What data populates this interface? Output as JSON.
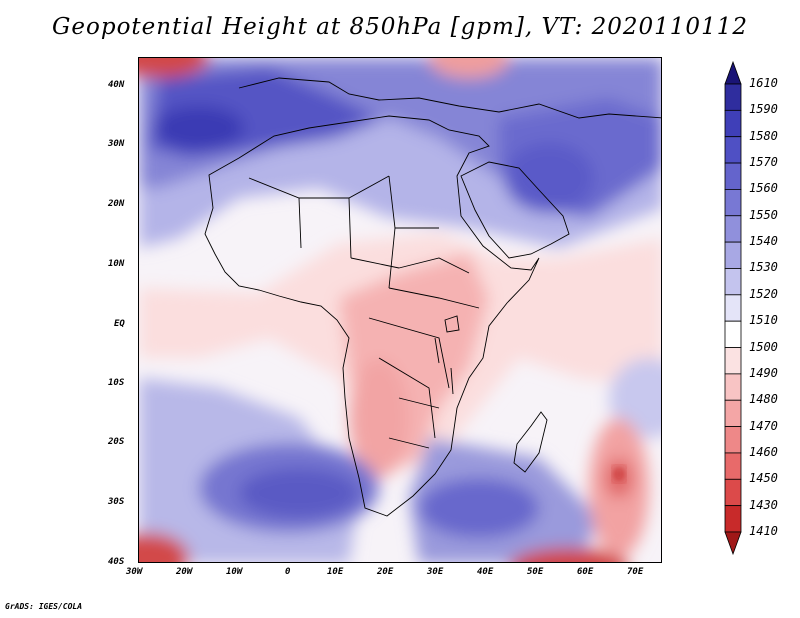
{
  "title": "Geopotential Height at 850hPa [gpm], VT: 2020110112",
  "credit": "GrADS: IGES/COLA",
  "map": {
    "lon_range": [
      -30,
      75
    ],
    "lat_range": [
      -40,
      45
    ],
    "lon_labels": [
      "30W",
      "20W",
      "10W",
      "0",
      "10E",
      "20E",
      "30E",
      "40E",
      "50E",
      "60E",
      "70E"
    ],
    "lat_labels": [
      "40N",
      "30N",
      "20N",
      "10N",
      "EQ",
      "10S",
      "20S",
      "30S",
      "40S"
    ]
  },
  "colorbar": {
    "labels": [
      "1610",
      "1590",
      "1580",
      "1570",
      "1560",
      "1550",
      "1540",
      "1530",
      "1520",
      "1510",
      "1500",
      "1490",
      "1480",
      "1470",
      "1460",
      "1450",
      "1430",
      "1410"
    ],
    "colors": [
      "#1a1476",
      "#2f2d9e",
      "#3f3fb8",
      "#4f50c4",
      "#6464cc",
      "#7878d4",
      "#9090dc",
      "#a8a8e4",
      "#c4c4ee",
      "#e4e4f8",
      "#ffffff",
      "#fbe2e2",
      "#f8c4c4",
      "#f4a6a6",
      "#ee8888",
      "#e86a6a",
      "#dc4a4a",
      "#c82a2a",
      "#a01818"
    ]
  }
}
